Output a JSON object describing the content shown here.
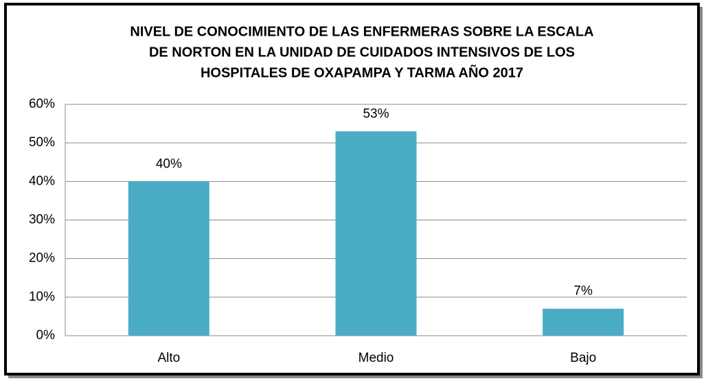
{
  "chart_data": {
    "type": "bar",
    "title": [
      "NIVEL DE CONOCIMIENTO  DE LAS ENFERMERAS  SOBRE LA ESCALA",
      "DE NORTON  EN  LA UNIDAD  DE CUIDADOS INTENSIVOS  DE LOS",
      "HOSPITALES   DE OXAPAMPA Y TARMA  AÑO 2017"
    ],
    "categories": [
      "Alto",
      "Medio",
      "Bajo"
    ],
    "values": [
      40,
      53,
      7
    ],
    "value_labels": [
      "40%",
      "53%",
      "7%"
    ],
    "color": "#4bacc6",
    "ylim": [
      0,
      60
    ],
    "yticks": [
      {
        "value": 0,
        "label": "0%"
      },
      {
        "value": 10,
        "label": "10%"
      },
      {
        "value": 20,
        "label": "20%"
      },
      {
        "value": 30,
        "label": "30%"
      },
      {
        "value": 40,
        "label": "40%"
      },
      {
        "value": 50,
        "label": "50%"
      },
      {
        "value": 60,
        "label": "60%"
      }
    ],
    "grid": true
  }
}
